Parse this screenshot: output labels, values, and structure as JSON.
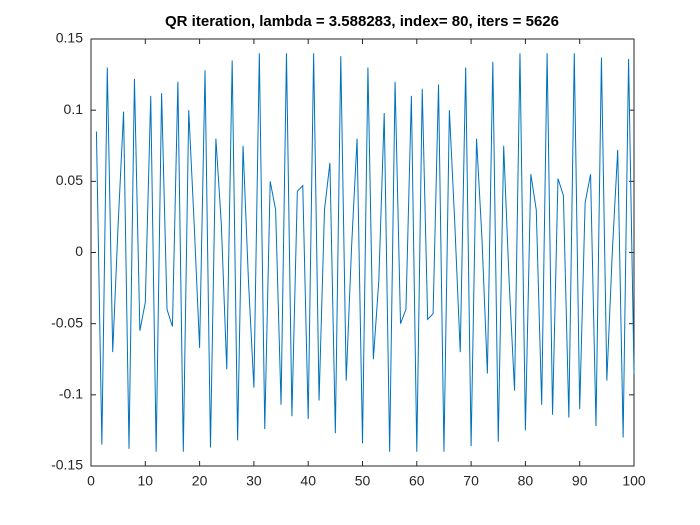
{
  "chart_data": {
    "type": "line",
    "title": "QR iteration, lambda = 3.588283, index= 80, iters = 5626",
    "x": [
      1,
      2,
      3,
      4,
      5,
      6,
      7,
      8,
      9,
      10,
      11,
      12,
      13,
      14,
      15,
      16,
      17,
      18,
      19,
      20,
      21,
      22,
      23,
      24,
      25,
      26,
      27,
      28,
      29,
      30,
      31,
      32,
      33,
      34,
      35,
      36,
      37,
      38,
      39,
      40,
      41,
      42,
      43,
      44,
      45,
      46,
      47,
      48,
      49,
      50,
      51,
      52,
      53,
      54,
      55,
      56,
      57,
      58,
      59,
      60,
      61,
      62,
      63,
      64,
      65,
      66,
      67,
      68,
      69,
      70,
      71,
      72,
      73,
      74,
      75,
      76,
      77,
      78,
      79,
      80,
      81,
      82,
      83,
      84,
      85,
      86,
      87,
      88,
      89,
      90,
      91,
      92,
      93,
      94,
      95,
      96,
      97,
      98,
      99,
      100
    ],
    "series": [
      {
        "color": "#0072bd",
        "values": [
          0.085,
          -0.135,
          0.13,
          -0.07,
          0.02,
          0.099,
          -0.138,
          0.122,
          -0.055,
          -0.035,
          0.11,
          -0.14,
          0.112,
          -0.04,
          -0.052,
          0.12,
          -0.14,
          0.1,
          0.02,
          -0.067,
          0.128,
          -0.137,
          0.08,
          0.02,
          -0.082,
          0.135,
          -0.132,
          0.075,
          -0.02,
          -0.095,
          0.14,
          -0.124,
          0.05,
          0.03,
          -0.107,
          0.14,
          -0.115,
          0.043,
          0.047,
          -0.117,
          0.14,
          -0.104,
          0.03,
          0.063,
          -0.127,
          0.138,
          -0.09,
          0.005,
          0.08,
          -0.134,
          0.13,
          -0.075,
          -0.02,
          0.098,
          -0.14,
          0.12,
          -0.05,
          -0.04,
          0.11,
          -0.14,
          0.115,
          -0.047,
          -0.043,
          0.118,
          -0.14,
          0.1,
          0.02,
          -0.07,
          0.13,
          -0.136,
          0.08,
          0.01,
          -0.085,
          0.134,
          -0.133,
          0.075,
          -0.02,
          -0.097,
          0.14,
          -0.125,
          0.055,
          0.03,
          -0.107,
          0.14,
          -0.114,
          0.052,
          0.04,
          -0.116,
          0.14,
          -0.11,
          0.035,
          0.055,
          -0.122,
          0.137,
          -0.09,
          0.0,
          0.072,
          -0.13,
          0.136,
          -0.085
        ]
      }
    ],
    "xlim": [
      0,
      100
    ],
    "xticks": [
      0,
      10,
      20,
      30,
      40,
      50,
      60,
      70,
      80,
      90,
      100
    ],
    "ylim": [
      -0.15,
      0.15
    ],
    "yticks": [
      -0.15,
      -0.1,
      -0.05,
      0,
      0.05,
      0.1,
      0.15
    ]
  }
}
